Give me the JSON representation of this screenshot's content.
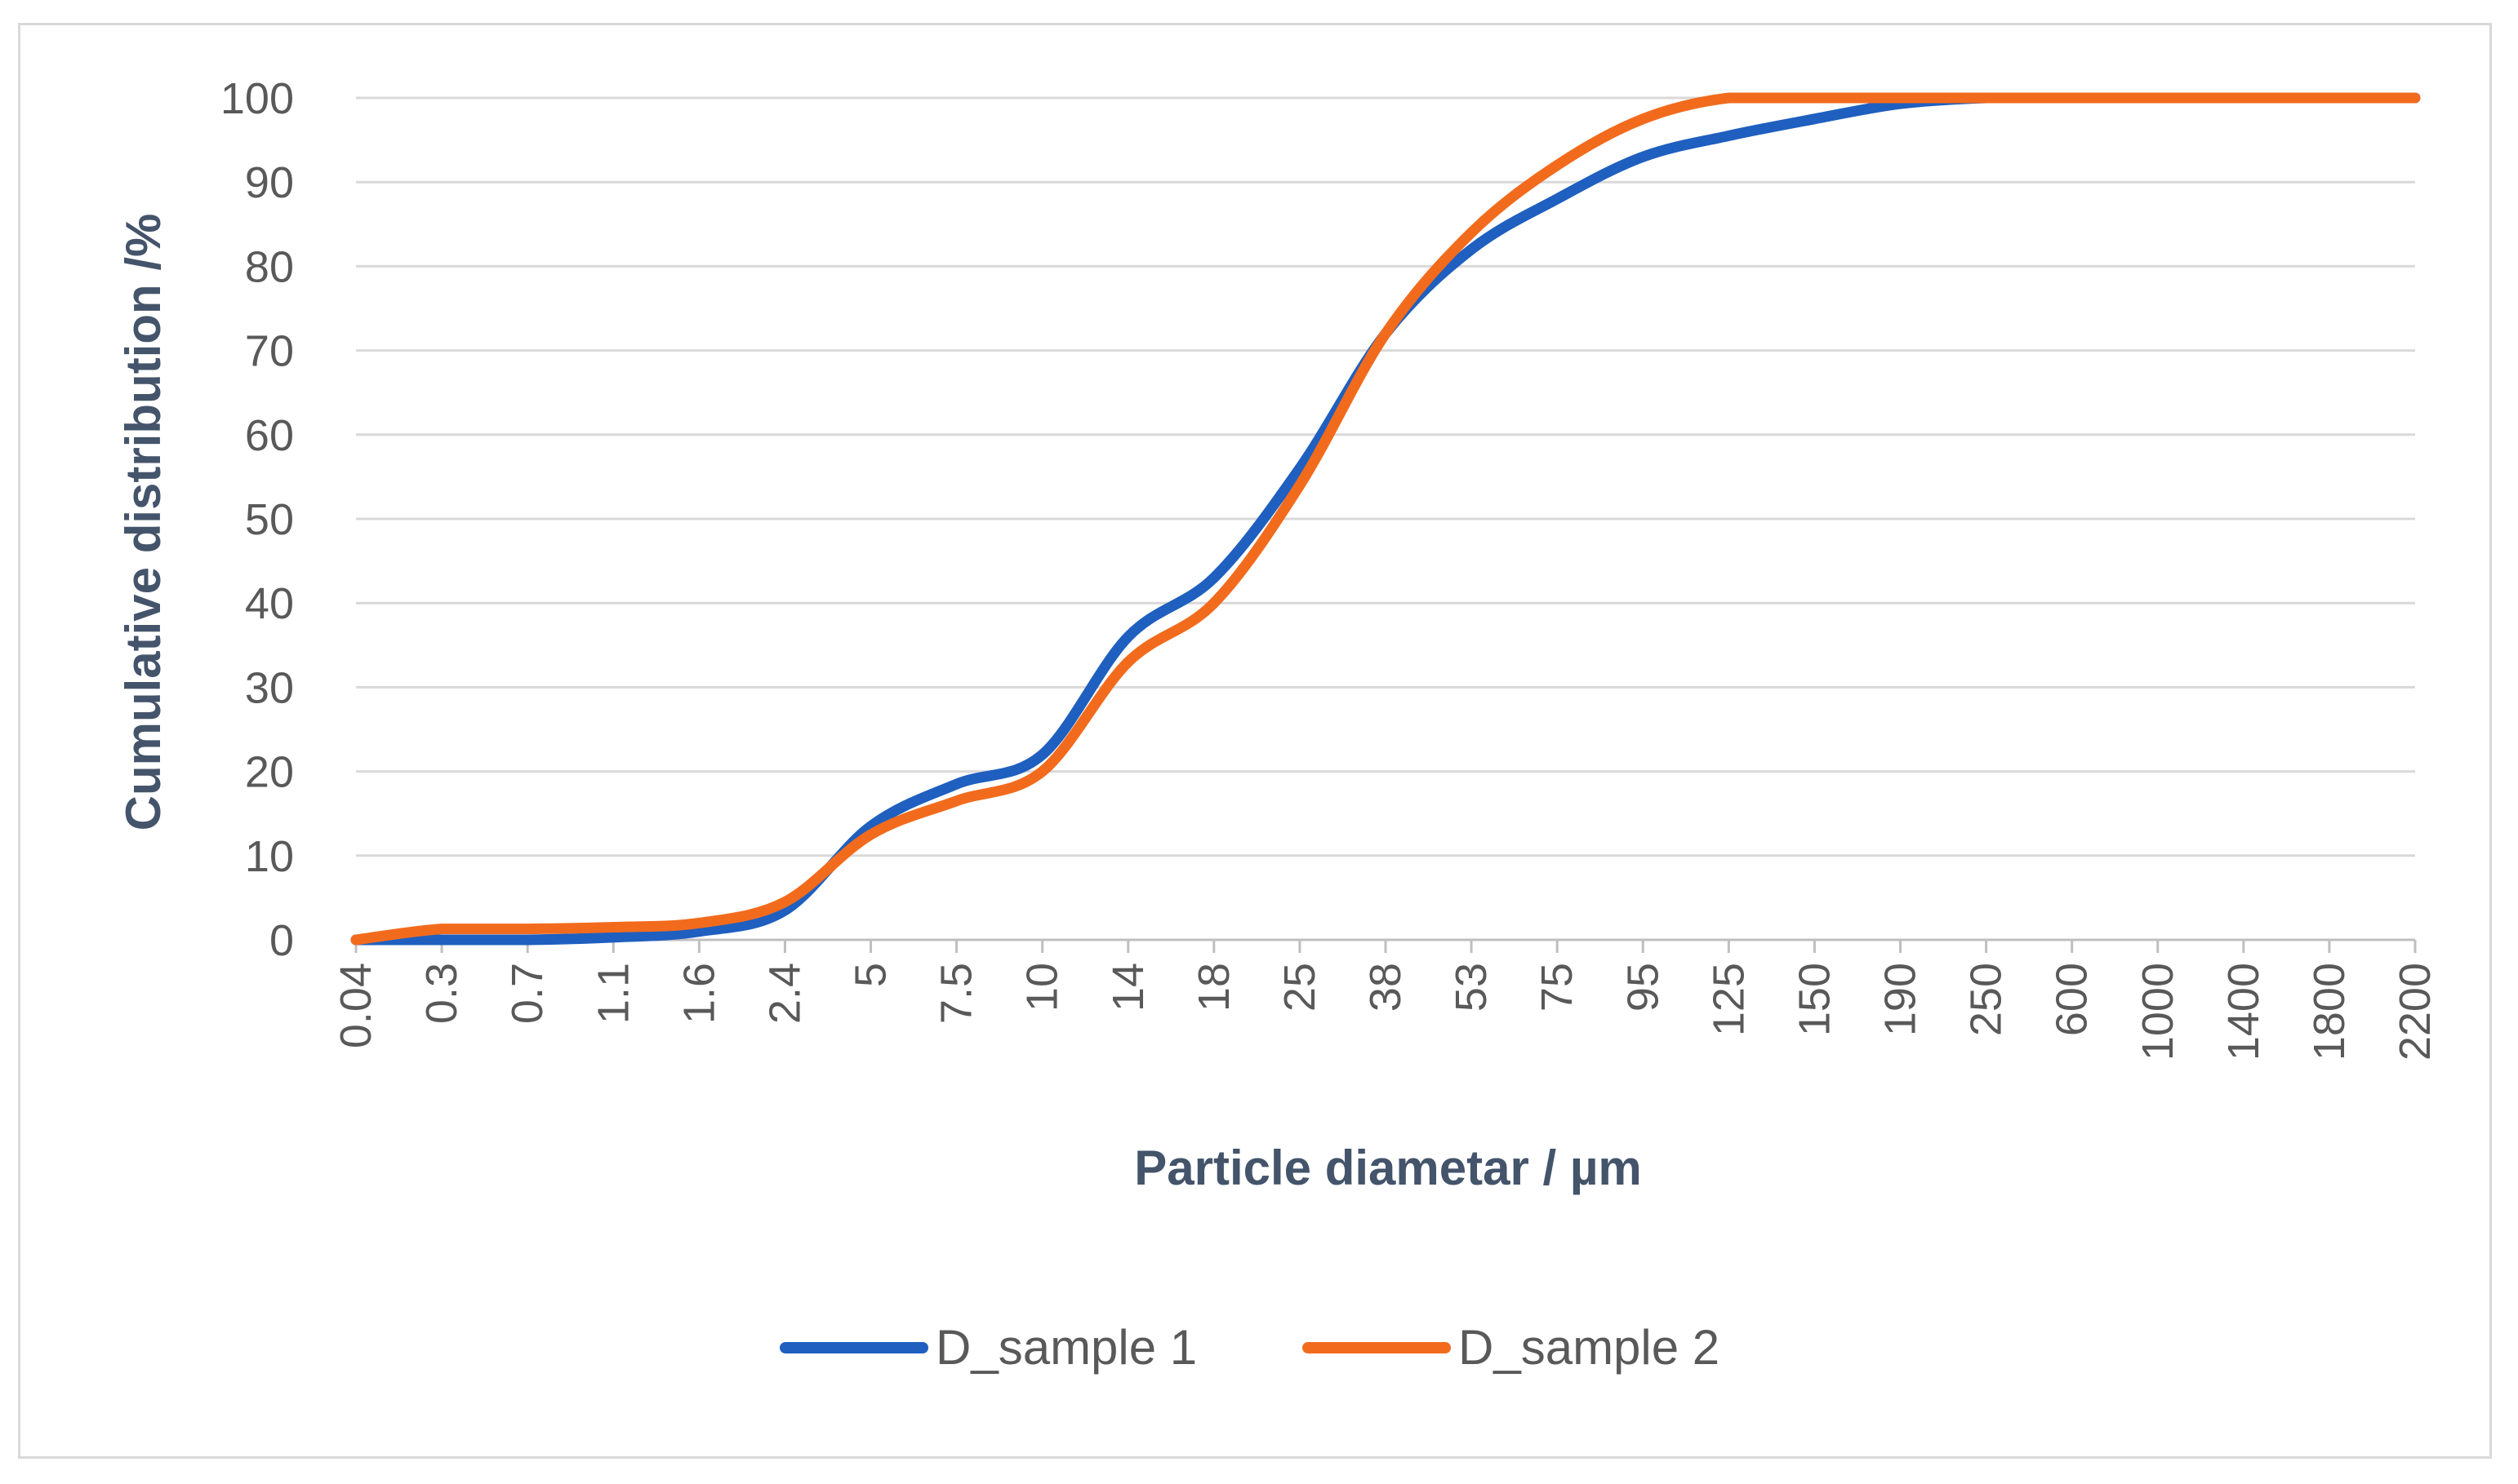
{
  "chart_data": {
    "type": "line",
    "title": "",
    "xlabel": "Particle diametar  / µm",
    "ylabel": "Cumulative distribution  /%",
    "ylim": [
      0,
      100
    ],
    "yticks": [
      "0",
      "10",
      "20",
      "30",
      "40",
      "50",
      "60",
      "70",
      "80",
      "90",
      "100"
    ],
    "xtick_labels": [
      "0.04",
      "0.3",
      "0.7",
      "1.1",
      "1.6",
      "2.4",
      "5",
      "7.5",
      "10",
      "14",
      "18",
      "25",
      "38",
      "53",
      "75",
      "95",
      "125",
      "150",
      "190",
      "250",
      "600",
      "1000",
      "1400",
      "1800",
      "2200"
    ],
    "grid": "horizontal",
    "legend_position": "bottom",
    "series": [
      {
        "name": "D_sample 1",
        "color": "#1f5fbf",
        "values": [
          0,
          0,
          0,
          0.3,
          1.0,
          3.5,
          13.5,
          18.5,
          22,
          36,
          43,
          56,
          72,
          82,
          88,
          93,
          95.5,
          97.5,
          99.3,
          100,
          100,
          100,
          100,
          100,
          100
        ]
      },
      {
        "name": "D_sample 2",
        "color": "#f26b1d",
        "values": [
          0,
          1.3,
          1.3,
          1.5,
          2.0,
          4.5,
          12.5,
          16.5,
          20,
          33,
          40,
          54,
          72,
          84,
          92,
          97.5,
          100,
          100,
          100,
          100,
          100,
          100,
          100,
          100,
          100
        ]
      }
    ]
  }
}
